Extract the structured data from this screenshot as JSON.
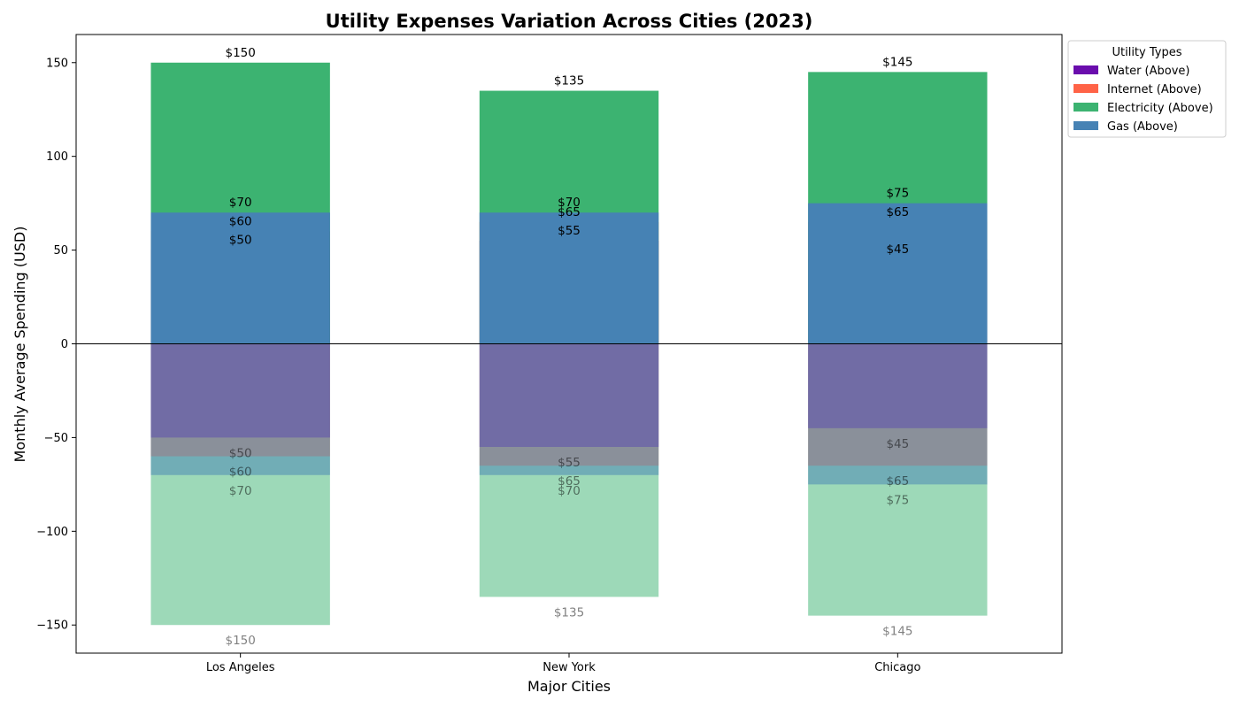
{
  "chart_data": {
    "type": "bar",
    "title": "Utility Expenses Variation Across Cities (2023)",
    "xlabel": "Major Cities",
    "ylabel": "Monthly Average Spending (USD)",
    "categories": [
      "Los Angeles",
      "New York",
      "Chicago"
    ],
    "ylim": [
      -165,
      165
    ],
    "yticks": [
      -150,
      -100,
      -50,
      0,
      50,
      100,
      150
    ],
    "grid": false,
    "series": [
      {
        "name": "Water (Above)",
        "color": "#6a0dad",
        "values": [
          50,
          55,
          45
        ]
      },
      {
        "name": "Internet (Above)",
        "color": "#ff6347",
        "values": [
          60,
          65,
          65
        ]
      },
      {
        "name": "Electricity (Above)",
        "color": "#3cb371",
        "values": [
          150,
          135,
          145
        ]
      },
      {
        "name": "Gas (Above)",
        "color": "#4682b4",
        "values": [
          70,
          70,
          75
        ]
      }
    ],
    "value_label_prefix": "$",
    "legend": {
      "title": "Utility Types",
      "placement": "upper-right-outside"
    }
  }
}
